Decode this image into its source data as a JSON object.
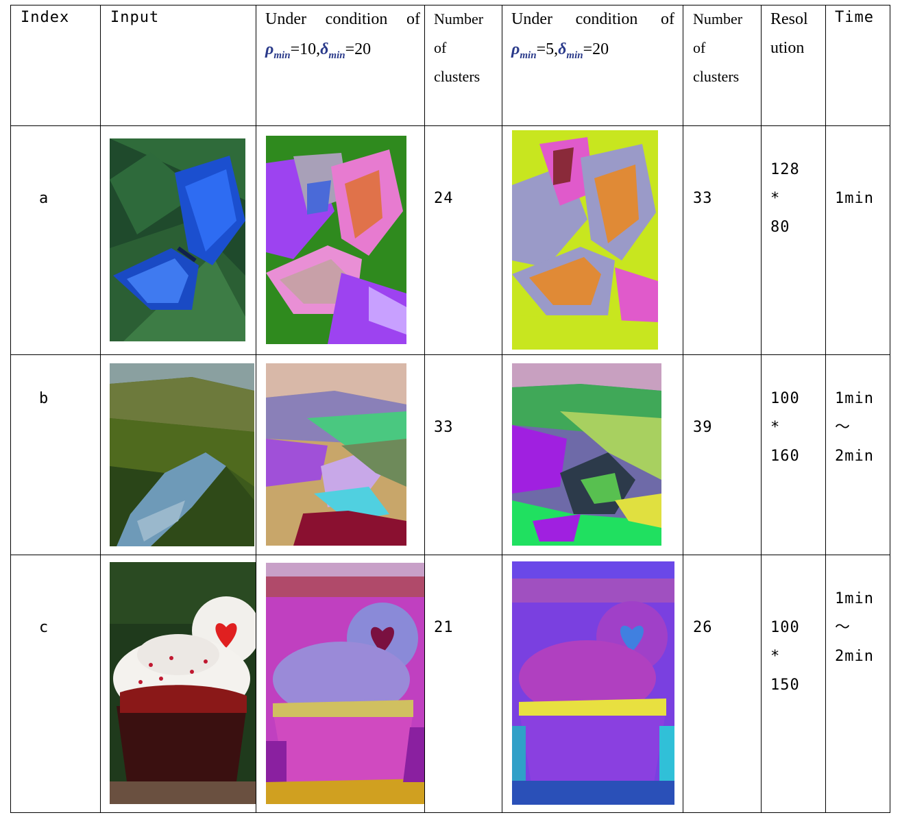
{
  "table": {
    "headers": {
      "index": "Index",
      "input": "Input",
      "cond1_line1": "Under condition of",
      "cond1_rho": "ρ",
      "cond1_rho_sub": "min",
      "cond1_eq1": "=10,",
      "cond1_delta": "δ",
      "cond1_delta_sub": "min",
      "cond1_eq2": "=20",
      "clusters1": [
        "Number",
        "of",
        "clusters"
      ],
      "cond2_line1": "Under condition of",
      "cond2_rho": "ρ",
      "cond2_rho_sub": "min",
      "cond2_eq1": "=5,",
      "cond2_delta": "δ",
      "cond2_delta_sub": "min",
      "cond2_eq2": "=20",
      "clusters2": [
        "Number",
        "of",
        "clusters"
      ],
      "resolution": [
        "Resol",
        "ution"
      ],
      "time": "Time"
    },
    "rows": [
      {
        "index": "a",
        "input_image": "butterfly-photo",
        "result1_image": "butterfly-segmentation-10-20",
        "clusters1": "24",
        "result2_image": "butterfly-segmentation-5-20",
        "clusters2": "33",
        "resolution": [
          "128",
          "*",
          "80"
        ],
        "time": [
          "1min"
        ]
      },
      {
        "index": "b",
        "input_image": "river-valley-photo",
        "result1_image": "river-segmentation-10-20",
        "clusters1": "33",
        "result2_image": "river-segmentation-5-20",
        "clusters2": "39",
        "resolution": [
          "100",
          "*",
          "160"
        ],
        "time": [
          "1min",
          "～",
          "2min"
        ]
      },
      {
        "index": "c",
        "input_image": "cupcake-photo",
        "result1_image": "cupcake-segmentation-10-20",
        "clusters1": "21",
        "result2_image": "cupcake-segmentation-5-20",
        "clusters2": "26",
        "resolution": [
          "100",
          "*",
          "150"
        ],
        "time": [
          "1min",
          "～",
          "2min"
        ]
      }
    ]
  }
}
